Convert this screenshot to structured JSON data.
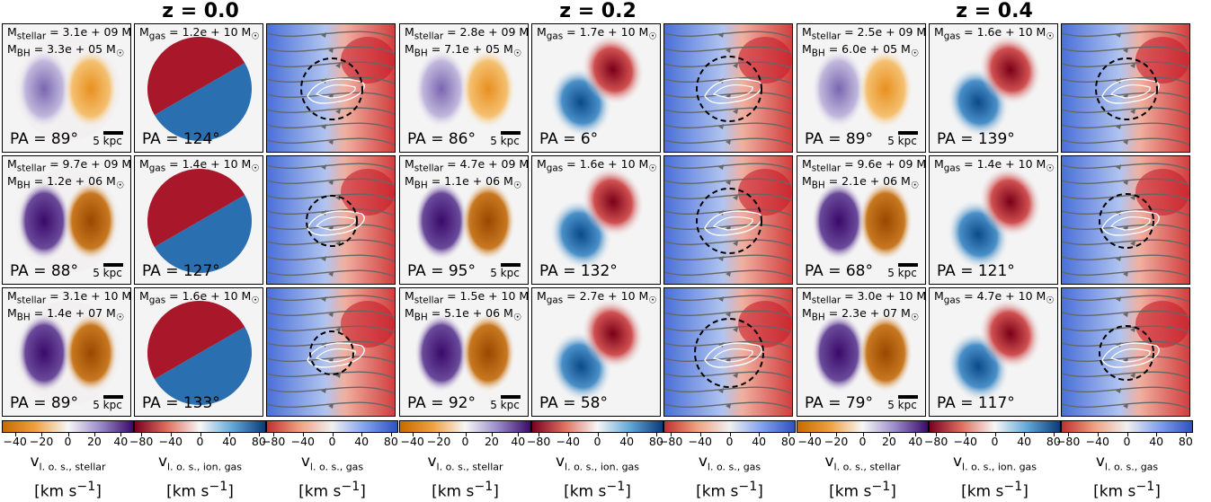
{
  "chart_data": {
    "type": "heatmap",
    "redshift_labels": [
      "z = 0.0",
      "z = 0.2",
      "z = 0.4"
    ],
    "column_kinds": [
      "stellar",
      "ion_gas",
      "gas_flow"
    ],
    "scale_label": "5 kpc",
    "rows": [
      [
        {
          "stellar": "M<sub>stellar</sub> = 3.1e + 09 M<sub>☉</sub>",
          "bh": "M<sub>BH</sub> = 3.3e + 05 M<sub>☉</sub>",
          "pa_stellar": "PA = 89°",
          "gas": "M<sub>gas</sub> = 1.2e + 10 M<sub>☉</sub>",
          "pa_gas": "PA = 124°"
        },
        {
          "stellar": "M<sub>stellar</sub> = 2.8e + 09 M<sub>☉</sub>",
          "bh": "M<sub>BH</sub> = 7.1e + 05 M<sub>☉</sub>",
          "pa_stellar": "PA = 86°",
          "gas": "M<sub>gas</sub> = 1.7e + 10 M<sub>☉</sub>",
          "pa_gas": "PA = 6°"
        },
        {
          "stellar": "M<sub>stellar</sub> = 2.5e + 09 M<sub>☉</sub>",
          "bh": "M<sub>BH</sub> = 6.0e + 05 M<sub>☉</sub>",
          "pa_stellar": "PA = 89°",
          "gas": "M<sub>gas</sub> = 1.6e + 10 M<sub>☉</sub>",
          "pa_gas": "PA = 139°"
        }
      ],
      [
        {
          "stellar": "M<sub>stellar</sub> = 9.7e + 09 M<sub>☉</sub>",
          "bh": "M<sub>BH</sub> = 1.2e + 06 M<sub>☉</sub>",
          "pa_stellar": "PA = 88°",
          "gas": "M<sub>gas</sub> = 1.4e + 10 M<sub>☉</sub>",
          "pa_gas": "PA = 127°"
        },
        {
          "stellar": "M<sub>stellar</sub> = 4.7e + 09 M<sub>☉</sub>",
          "bh": "M<sub>BH</sub> = 1.1e + 06 M<sub>☉</sub>",
          "pa_stellar": "PA = 95°",
          "gas": "M<sub>gas</sub> = 1.6e + 10 M<sub>☉</sub>",
          "pa_gas": "PA = 132°"
        },
        {
          "stellar": "M<sub>stellar</sub> = 9.6e + 09 M<sub>☉</sub>",
          "bh": "M<sub>BH</sub> = 2.1e + 06 M<sub>☉</sub>",
          "pa_stellar": "PA = 68°",
          "gas": "M<sub>gas</sub> = 1.4e + 10 M<sub>☉</sub>",
          "pa_gas": "PA = 121°"
        }
      ],
      [
        {
          "stellar": "M<sub>stellar</sub> = 3.1e + 10 M<sub>☉</sub>",
          "bh": "M<sub>BH</sub> = 1.4e + 07 M<sub>☉</sub>",
          "pa_stellar": "PA = 89°",
          "gas": "M<sub>gas</sub> = 1.6e + 10 M<sub>☉</sub>",
          "pa_gas": "PA = 133°"
        },
        {
          "stellar": "M<sub>stellar</sub> = 1.5e + 10 M<sub>☉</sub>",
          "bh": "M<sub>BH</sub> = 5.1e + 06 M<sub>☉</sub>",
          "pa_stellar": "PA = 92°",
          "gas": "M<sub>gas</sub> = 2.7e + 10 M<sub>☉</sub>",
          "pa_gas": "PA = 58°"
        },
        {
          "stellar": "M<sub>stellar</sub> = 3.0e + 10 M<sub>☉</sub>",
          "bh": "M<sub>BH</sub> = 2.3e + 07 M<sub>☉</sub>",
          "pa_stellar": "PA = 79°",
          "gas": "M<sub>gas</sub> = 4.7e + 10 M<sub>☉</sub>",
          "pa_gas": "PA = 117°"
        }
      ]
    ],
    "colorbars": [
      {
        "kind": "stellar",
        "ticks": [
          "−40",
          "−20",
          "0",
          "20",
          "40"
        ],
        "range": [
          -50,
          50
        ],
        "label": "v<sub>l. o. s., stellar</sub>",
        "unit": "[km s<sup>−1</sup>]",
        "colors": [
          "#c86a00",
          "#f0a040",
          "#f7f7f7",
          "#9a8ac8",
          "#3a0a6a"
        ]
      },
      {
        "kind": "ion_gas",
        "ticks": [
          "−80",
          "−40",
          "0",
          "40",
          "80"
        ],
        "range": [
          -90,
          90
        ],
        "label": "v<sub>l. o. s., ion. gas</sub>",
        "unit": "[km s<sup>−1</sup>]",
        "colors": [
          "#7a0020",
          "#e07060",
          "#f7f7f7",
          "#60a8d8",
          "#0a3a7a"
        ]
      },
      {
        "kind": "gas_flow",
        "ticks": [
          "−80",
          "−40",
          "0",
          "40",
          "80"
        ],
        "range": [
          -90,
          90
        ],
        "label": "v<sub>l. o. s., gas</sub>",
        "unit": "[km s<sup>−1</sup>]",
        "colors": [
          "#c03030",
          "#f0a080",
          "#f0f0f0",
          "#80a0f0",
          "#3050c0"
        ]
      }
    ]
  }
}
